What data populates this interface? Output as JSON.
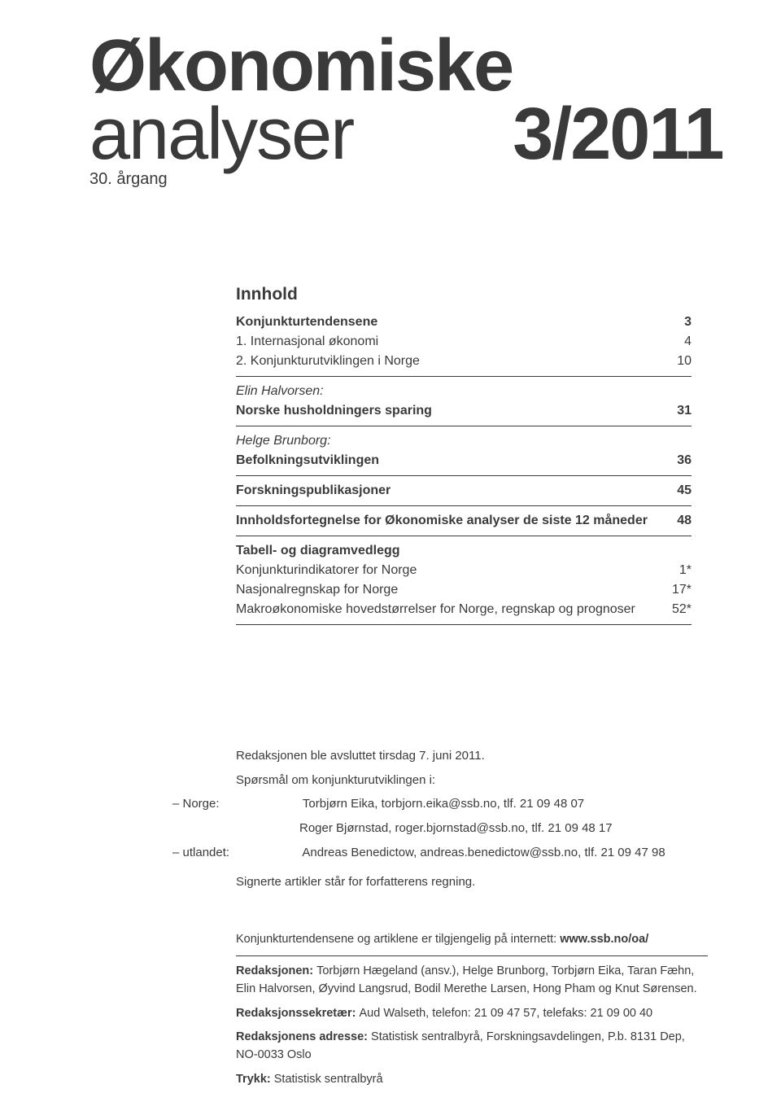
{
  "masthead": {
    "title_main": "Økonomiske",
    "title_sub": "analyser",
    "issue": "3/2011",
    "volume": "30. årgang"
  },
  "toc": {
    "heading": "Innhold",
    "rows": [
      {
        "label": "Konjunkturtendensene",
        "page": "3",
        "bold": true,
        "rule_after": false
      },
      {
        "label": "1. Internasjonal økonomi",
        "page": "4",
        "bold": false,
        "rule_after": false
      },
      {
        "label": "2. Konjunkturutviklingen i Norge",
        "page": "10",
        "bold": false,
        "rule_after": true
      },
      {
        "label": "Elin Halvorsen:",
        "page": "",
        "italic": true,
        "rule_after": false
      },
      {
        "label": "Norske husholdningers sparing",
        "page": "31",
        "bold": true,
        "rule_after": true
      },
      {
        "label": "Helge Brunborg:",
        "page": "",
        "italic": true,
        "rule_after": false
      },
      {
        "label": "Befolkningsutviklingen",
        "page": "36",
        "bold": true,
        "rule_after": true
      },
      {
        "label": "Forskningspublikasjoner",
        "page": "45",
        "bold": true,
        "rule_after": true
      },
      {
        "label": "Innholdsfortegnelse for Økonomiske analyser de siste 12 måneder",
        "page": "48",
        "bold": true,
        "rule_after": true
      },
      {
        "label": "Tabell- og diagramvedlegg",
        "page": "",
        "bold": true,
        "rule_after": false
      },
      {
        "label": "Konjunkturindikatorer for Norge",
        "page": "1*",
        "bold": false,
        "rule_after": false
      },
      {
        "label": "Nasjonalregnskap for Norge",
        "page": "17*",
        "bold": false,
        "rule_after": false
      },
      {
        "label": "Makroøkonomiske hovedstørrelser for Norge, regnskap og prognoser",
        "page": "52*",
        "bold": false,
        "rule_after": true
      }
    ]
  },
  "info": {
    "closed": "Redaksjonen ble avsluttet tirsdag 7. juni 2011.",
    "questions_heading": "Spørsmål om konjunkturutviklingen i:",
    "norway_label": "– Norge:",
    "norway_contact1": "Torbjørn Eika, torbjorn.eika@ssb.no, tlf. 21 09 48 07",
    "norway_contact2": "Roger Bjørnstad, roger.bjornstad@ssb.no, tlf. 21 09 48 17",
    "abroad_label": "– utlandet:",
    "abroad_contact": "Andreas Benedictow, andreas.benedictow@ssb.no, tlf. 21 09 47 98",
    "disclaimer": "Signerte artikler står for forfatterens regning."
  },
  "footer": {
    "online_prefix": "Konjunkturtendensene og artiklene er tilgjengelig på internett: ",
    "online_url": "www.ssb.no/oa/",
    "redaksjonen_label": "Redaksjonen: ",
    "redaksjonen_text": "Torbjørn Hægeland (ansv.), Helge Brunborg, Torbjørn Eika, Taran Fæhn, Elin Halvorsen, Øyvind Langsrud, Bodil Merethe Larsen, Hong Pham og Knut Sørensen.",
    "sekretaer_label": "Redaksjonssekretær: ",
    "sekretaer_text": "Aud Walseth, telefon: 21 09 47 57, telefaks: 21 09 00 40",
    "adresse_label": "Redaksjonens adresse: ",
    "adresse_text": "Statistisk sentralbyrå, Forskningsavdelingen, P.b. 8131 Dep, NO-0033 Oslo",
    "trykk_label": "Trykk: ",
    "trykk_text": "Statistisk sentralbyrå"
  },
  "style": {
    "text_color": "#3a3a3a",
    "background_color": "#ffffff",
    "rule_color": "#3a3a3a",
    "masthead_fontsize": 90,
    "volume_fontsize": 20,
    "toc_heading_fontsize": 21,
    "toc_row_fontsize": 16,
    "info_fontsize": 15,
    "footer_fontsize": 14.5
  }
}
